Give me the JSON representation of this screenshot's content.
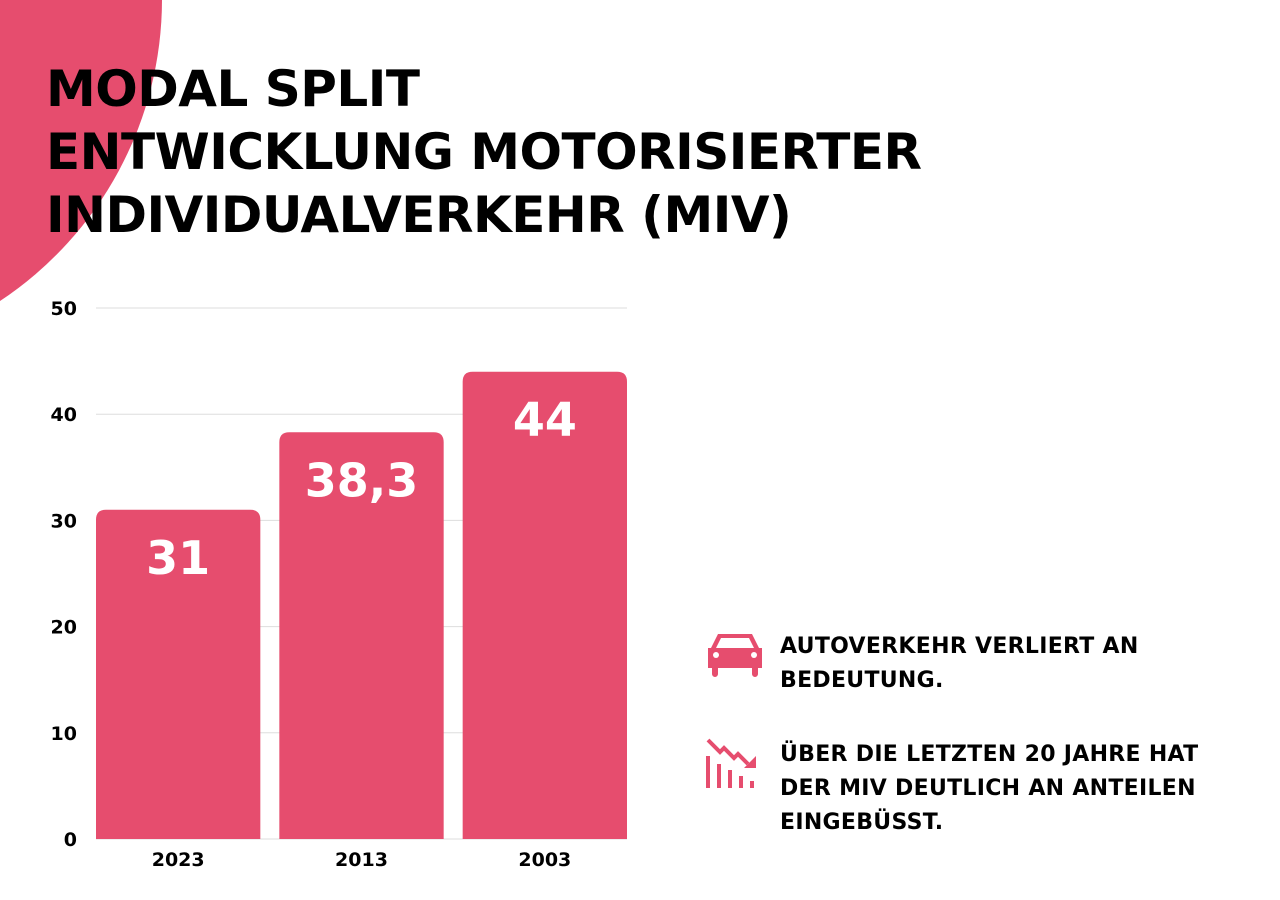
{
  "title_lines": [
    "MODAL SPLIT",
    "ENTWICKLUNG MOTORISIERTER",
    "INDIVIDUALVERKEHR (MIV)"
  ],
  "colors": {
    "accent": "#e64d6e",
    "grid": "#dddddd",
    "text": "#000000"
  },
  "chart_data": {
    "type": "bar",
    "categories": [
      "2023",
      "2013",
      "2003"
    ],
    "values": [
      31,
      38.3,
      44
    ],
    "data_labels": [
      "31",
      "38,3",
      "44"
    ],
    "yticks": [
      "0",
      "10",
      "20",
      "30",
      "40",
      "50"
    ],
    "ylim": [
      0,
      50
    ],
    "grid": true
  },
  "notes": [
    {
      "icon": "car-icon",
      "text": "AUTOVERKEHR VERLIERT AN BEDEUTUNG."
    },
    {
      "icon": "declining-chart-icon",
      "text": "ÜBER DIE LETZTEN 20 JAHRE HAT DER MIV DEUTLICH AN ANTEILEN EINGEBÜSST."
    }
  ]
}
